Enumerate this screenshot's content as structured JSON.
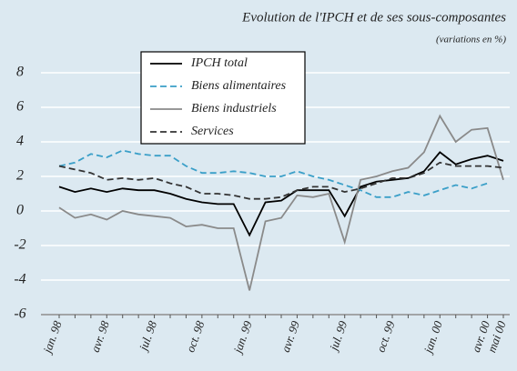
{
  "chart_data": {
    "type": "line",
    "title": "Evolution de l'IPCH et de ses sous-composantes",
    "subtitle": "(variations en %)",
    "categories": [
      "jan. 98",
      null,
      null,
      "avr. 98",
      null,
      null,
      "jul. 98",
      null,
      null,
      "oct. 98",
      null,
      null,
      "jan. 99",
      null,
      null,
      "avr. 99",
      null,
      null,
      "jul. 99",
      null,
      null,
      "oct. 99",
      null,
      null,
      "jan. 00",
      null,
      null,
      "avr. 00",
      "mai 00"
    ],
    "series": [
      {
        "name": "IPCH total",
        "color": "#000000",
        "style": "solid",
        "values": [
          1.4,
          1.1,
          1.3,
          1.1,
          1.3,
          1.2,
          1.2,
          1.0,
          0.7,
          0.5,
          0.4,
          0.4,
          -1.4,
          0.5,
          0.6,
          1.2,
          1.2,
          1.2,
          -0.3,
          1.4,
          1.7,
          1.8,
          1.9,
          2.3,
          3.4,
          2.7,
          3.0,
          3.2,
          2.9
        ]
      },
      {
        "name": "Biens alimentaires",
        "color": "#3a9fc8",
        "style": "dashed",
        "values": [
          2.6,
          2.8,
          3.3,
          3.1,
          3.5,
          3.3,
          3.2,
          3.2,
          2.6,
          2.2,
          2.2,
          2.3,
          2.2,
          2.0,
          2.0,
          2.3,
          2.0,
          1.8,
          1.5,
          1.2,
          0.8,
          0.8,
          1.1,
          0.9,
          1.2,
          1.5,
          1.3,
          1.6,
          null
        ]
      },
      {
        "name": "Biens industriels",
        "color": "#8a8a8a",
        "style": "solid",
        "values": [
          0.2,
          -0.4,
          -0.2,
          -0.5,
          0.0,
          -0.2,
          -0.3,
          -0.4,
          -0.9,
          -0.8,
          -1.0,
          -1.0,
          -4.6,
          -0.6,
          -0.4,
          0.9,
          0.8,
          1.0,
          -1.8,
          1.8,
          2.0,
          2.3,
          2.5,
          3.4,
          5.5,
          4.0,
          4.7,
          4.8,
          1.8
        ]
      },
      {
        "name": "Services",
        "color": "#333333",
        "style": "dashed",
        "values": [
          2.6,
          2.4,
          2.2,
          1.8,
          1.9,
          1.8,
          1.9,
          1.6,
          1.4,
          1.0,
          1.0,
          0.9,
          0.7,
          0.7,
          0.8,
          1.2,
          1.4,
          1.4,
          1.1,
          1.3,
          1.6,
          1.9,
          1.9,
          2.2,
          2.8,
          2.6,
          2.6,
          2.6,
          2.5
        ]
      }
    ],
    "ylim": [
      -6,
      8
    ],
    "yticks": [
      -6,
      -4,
      -2,
      0,
      2,
      4,
      6,
      8
    ],
    "grid": true,
    "legend": "upper left",
    "background": "#dce9f1"
  }
}
